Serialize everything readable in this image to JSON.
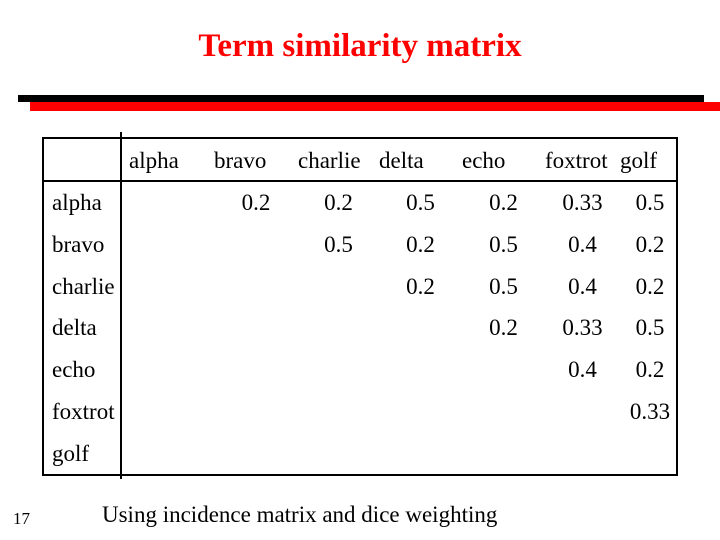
{
  "slide": {
    "title": "Term similarity matrix",
    "page_number": "17",
    "caption": "Using incidence matrix and dice weighting",
    "colors": {
      "background": "#ffffff",
      "title_text": "#ff0000",
      "accent_line_red": "#ff0000",
      "accent_line_black": "#000000",
      "body_text": "#000000",
      "table_border": "#000000"
    }
  },
  "matrix": {
    "column_headers": [
      "alpha",
      "bravo",
      "charlie",
      "delta",
      "echo",
      "foxtrot",
      "golf"
    ],
    "row_headers": [
      "alpha",
      "bravo",
      "charlie",
      "delta",
      "echo",
      "foxtrot",
      "golf"
    ],
    "rows": [
      [
        "",
        "0.2",
        "0.2",
        "0.5",
        "0.2",
        "0.33",
        "0.5"
      ],
      [
        "",
        "",
        "0.5",
        "0.2",
        "0.5",
        "0.4",
        "0.2"
      ],
      [
        "",
        "",
        "",
        "0.2",
        "0.5",
        "0.4",
        "0.2"
      ],
      [
        "",
        "",
        "",
        "",
        "0.2",
        "0.33",
        "0.5"
      ],
      [
        "",
        "",
        "",
        "",
        "",
        "0.4",
        "0.2"
      ],
      [
        "",
        "",
        "",
        "",
        "",
        "",
        "0.33"
      ],
      [
        "",
        "",
        "",
        "",
        "",
        "",
        ""
      ]
    ]
  }
}
